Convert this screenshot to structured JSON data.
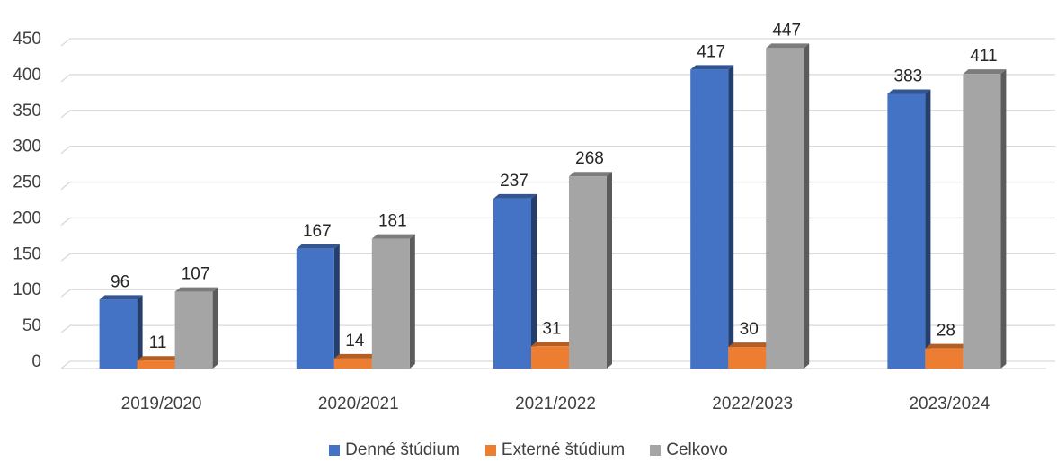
{
  "chart_data": {
    "type": "bar",
    "style": "3d-clustered-column",
    "categories": [
      "2019/2020",
      "2020/2021",
      "2021/2022",
      "2022/2023",
      "2023/2024"
    ],
    "series": [
      {
        "name": "Denné štúdium",
        "values": [
          96,
          167,
          237,
          417,
          383
        ],
        "color": "#4472C4"
      },
      {
        "name": "Externé štúdium",
        "values": [
          11,
          14,
          31,
          30,
          28
        ],
        "color": "#ED7D31"
      },
      {
        "name": "Celkovo",
        "values": [
          107,
          181,
          268,
          447,
          411
        ],
        "color": "#A5A5A5"
      }
    ],
    "title": "",
    "xlabel": "",
    "ylabel": "",
    "ylim": [
      0,
      450
    ],
    "yticks": [
      0,
      50,
      100,
      150,
      200,
      250,
      300,
      350,
      400,
      450
    ],
    "grid": true,
    "legend_position": "bottom",
    "data_labels": true
  }
}
